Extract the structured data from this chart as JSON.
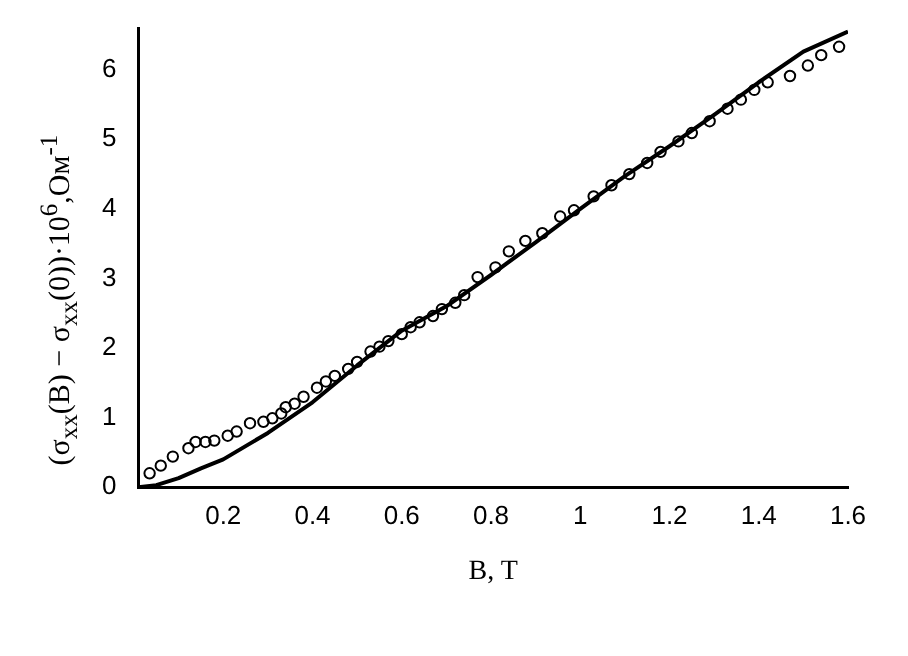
{
  "chart_data": {
    "type": "scatter",
    "xlabel": "B, T",
    "ylabel": "(σ$_{xx}$(B) − σ$_{xx}$(0))·10$^{6}$,Ом$^{-1}$",
    "xlim": [
      0.01,
      1.6
    ],
    "xticks": [
      0.2,
      0.4,
      0.6,
      0.8,
      1,
      1.2,
      1.4,
      1.6
    ],
    "ylim": [
      0,
      6.6
    ],
    "yticks": [
      0,
      1,
      2,
      3,
      4,
      5,
      6
    ],
    "grid": false,
    "legend": false,
    "series": [
      {
        "type": "line",
        "color": "#000000",
        "marker": "none",
        "line_style": "solid",
        "x": [
          0.01,
          0.05,
          0.1,
          0.15,
          0.2,
          0.3,
          0.4,
          0.5,
          0.6,
          0.7,
          0.8,
          0.9,
          1.0,
          1.1,
          1.2,
          1.3,
          1.4,
          1.5,
          1.6
        ],
        "values": [
          0,
          0.03,
          0.13,
          0.27,
          0.4,
          0.78,
          1.22,
          1.75,
          2.25,
          2.6,
          3.05,
          3.52,
          4.0,
          4.47,
          4.9,
          5.35,
          5.82,
          6.26,
          6.55
        ]
      },
      {
        "type": "scatter",
        "color": "#000000",
        "marker": "circle",
        "x": [
          0.035,
          0.06,
          0.087,
          0.122,
          0.138,
          0.16,
          0.18,
          0.21,
          0.23,
          0.26,
          0.29,
          0.31,
          0.33,
          0.34,
          0.36,
          0.38,
          0.41,
          0.43,
          0.45,
          0.48,
          0.5,
          0.53,
          0.55,
          0.57,
          0.6,
          0.62,
          0.64,
          0.67,
          0.69,
          0.72,
          0.74,
          0.77,
          0.81,
          0.84,
          0.877,
          0.915,
          0.955,
          0.986,
          1.03,
          1.07,
          1.11,
          1.15,
          1.18,
          1.22,
          1.25,
          1.29,
          1.33,
          1.36,
          1.39,
          1.42,
          1.47,
          1.51,
          1.54,
          1.58
        ],
        "values": [
          0.2,
          0.31,
          0.44,
          0.56,
          0.65,
          0.65,
          0.67,
          0.74,
          0.8,
          0.92,
          0.94,
          0.99,
          1.06,
          1.15,
          1.2,
          1.3,
          1.43,
          1.52,
          1.6,
          1.7,
          1.8,
          1.95,
          2.02,
          2.1,
          2.2,
          2.3,
          2.37,
          2.46,
          2.56,
          2.65,
          2.76,
          3.02,
          3.16,
          3.39,
          3.54,
          3.65,
          3.89,
          3.98,
          4.18,
          4.34,
          4.5,
          4.66,
          4.82,
          4.97,
          5.09,
          5.26,
          5.44,
          5.57,
          5.71,
          5.82,
          5.91,
          6.06,
          6.21,
          6.33
        ]
      }
    ]
  }
}
